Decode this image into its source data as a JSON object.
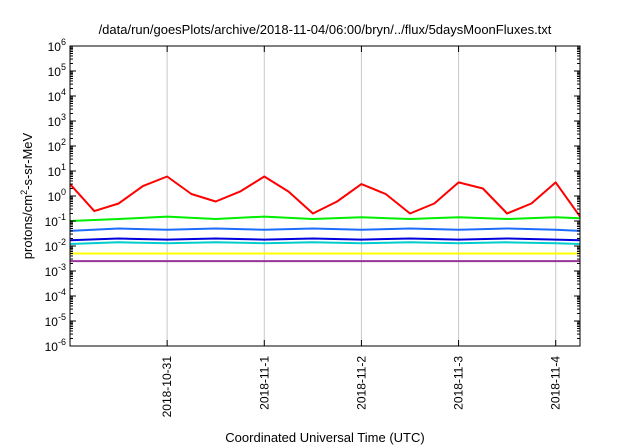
{
  "chart_data": {
    "type": "line",
    "title": "/data/run/goesPlots/archive/2018-11-04/06:00/bryn/../flux/5daysMoonFluxes.txt",
    "xlabel": "Coordinated Universal Time (UTC)",
    "ylabel": "protons/cm2-s-sr-MeV",
    "ylabel_parts": {
      "base": "protons/cm",
      "sup": "2",
      "rest": "-s-sr-MeV"
    },
    "y_scale": "log",
    "ylim": [
      1e-06,
      1000000.0
    ],
    "y_ticks": [
      {
        "exp": "-6"
      },
      {
        "exp": "-5"
      },
      {
        "exp": "-4"
      },
      {
        "exp": "-3"
      },
      {
        "exp": "-2"
      },
      {
        "exp": "-1"
      },
      {
        "exp": "0"
      },
      {
        "exp": "1"
      },
      {
        "exp": "2"
      },
      {
        "exp": "3"
      },
      {
        "exp": "4"
      },
      {
        "exp": "5"
      },
      {
        "exp": "6"
      }
    ],
    "xlim": [
      "2018-10-30T00:00",
      "2018-11-04T06:00"
    ],
    "x_ticks": [
      "2018-10-31",
      "2018-11-1",
      "2018-11-2",
      "2018-11-3",
      "2018-11-4"
    ],
    "grid": true,
    "legend": "none",
    "series": [
      {
        "color": "#ff0000",
        "x": [
          "2018-10-30T00:00",
          "2018-10-30T06:00",
          "2018-10-30T12:00",
          "2018-10-30T18:00",
          "2018-10-31T00:00",
          "2018-10-31T06:00",
          "2018-10-31T12:00",
          "2018-10-31T18:00",
          "2018-11-01T00:00",
          "2018-11-01T06:00",
          "2018-11-01T12:00",
          "2018-11-01T18:00",
          "2018-11-02T00:00",
          "2018-11-02T06:00",
          "2018-11-02T12:00",
          "2018-11-02T18:00",
          "2018-11-03T00:00",
          "2018-11-03T06:00",
          "2018-11-03T12:00",
          "2018-11-03T18:00",
          "2018-11-04T00:00",
          "2018-11-04T06:00"
        ],
        "values": [
          3,
          0.25,
          0.5,
          2.5,
          6,
          1.2,
          0.6,
          1.5,
          6,
          1.5,
          0.2,
          0.6,
          3,
          1.2,
          0.2,
          0.5,
          3.5,
          2,
          0.2,
          0.5,
          3.5,
          0.15
        ]
      },
      {
        "color": "#00ee00",
        "x": [
          "2018-10-30T00:00",
          "2018-10-30T12:00",
          "2018-10-31T00:00",
          "2018-10-31T12:00",
          "2018-11-01T00:00",
          "2018-11-01T12:00",
          "2018-11-02T00:00",
          "2018-11-02T12:00",
          "2018-11-03T00:00",
          "2018-11-03T12:00",
          "2018-11-04T00:00",
          "2018-11-04T06:00"
        ],
        "values": [
          0.1,
          0.12,
          0.15,
          0.12,
          0.15,
          0.12,
          0.14,
          0.12,
          0.14,
          0.12,
          0.14,
          0.13
        ]
      },
      {
        "color": "#1e6cff",
        "x": [
          "2018-10-30T00:00",
          "2018-10-30T12:00",
          "2018-10-31T00:00",
          "2018-10-31T12:00",
          "2018-11-01T00:00",
          "2018-11-01T12:00",
          "2018-11-02T00:00",
          "2018-11-02T12:00",
          "2018-11-03T00:00",
          "2018-11-03T12:00",
          "2018-11-04T00:00",
          "2018-11-04T06:00"
        ],
        "values": [
          0.04,
          0.05,
          0.045,
          0.05,
          0.045,
          0.05,
          0.045,
          0.05,
          0.045,
          0.05,
          0.045,
          0.04
        ]
      },
      {
        "color": "#00cccc",
        "x": [
          "2018-10-30T00:00",
          "2018-10-30T12:00",
          "2018-10-31T00:00",
          "2018-10-31T12:00",
          "2018-11-01T00:00",
          "2018-11-01T12:00",
          "2018-11-02T00:00",
          "2018-11-02T12:00",
          "2018-11-03T00:00",
          "2018-11-03T12:00",
          "2018-11-04T00:00",
          "2018-11-04T06:00"
        ],
        "values": [
          0.012,
          0.014,
          0.013,
          0.014,
          0.013,
          0.014,
          0.013,
          0.014,
          0.013,
          0.014,
          0.013,
          0.012
        ]
      },
      {
        "color": "#0000dd",
        "x": [
          "2018-10-30T00:00",
          "2018-10-30T12:00",
          "2018-10-31T00:00",
          "2018-10-31T12:00",
          "2018-11-01T00:00",
          "2018-11-01T12:00",
          "2018-11-02T00:00",
          "2018-11-02T12:00",
          "2018-11-03T00:00",
          "2018-11-03T12:00",
          "2018-11-04T00:00",
          "2018-11-04T06:00"
        ],
        "values": [
          0.017,
          0.02,
          0.018,
          0.02,
          0.018,
          0.02,
          0.018,
          0.02,
          0.018,
          0.02,
          0.018,
          0.017
        ]
      },
      {
        "color": "#ffff00",
        "x": [
          "2018-10-30T00:00",
          "2018-10-30T12:00",
          "2018-10-31T00:00",
          "2018-10-31T12:00",
          "2018-11-01T00:00",
          "2018-11-01T12:00",
          "2018-11-02T00:00",
          "2018-11-02T12:00",
          "2018-11-03T00:00",
          "2018-11-03T12:00",
          "2018-11-04T00:00",
          "2018-11-04T06:00"
        ],
        "values": [
          0.005,
          0.005,
          0.005,
          0.005,
          0.005,
          0.005,
          0.005,
          0.005,
          0.005,
          0.005,
          0.005,
          0.005
        ]
      },
      {
        "color": "#993399",
        "x": [
          "2018-10-30T00:00",
          "2018-10-30T12:00",
          "2018-10-31T00:00",
          "2018-10-31T12:00",
          "2018-11-01T00:00",
          "2018-11-01T12:00",
          "2018-11-02T00:00",
          "2018-11-02T12:00",
          "2018-11-03T00:00",
          "2018-11-03T12:00",
          "2018-11-04T00:00",
          "2018-11-04T06:00"
        ],
        "values": [
          0.0025,
          0.0025,
          0.0025,
          0.0025,
          0.0025,
          0.0025,
          0.0025,
          0.0025,
          0.0025,
          0.0025,
          0.0025,
          0.0025
        ]
      }
    ]
  }
}
